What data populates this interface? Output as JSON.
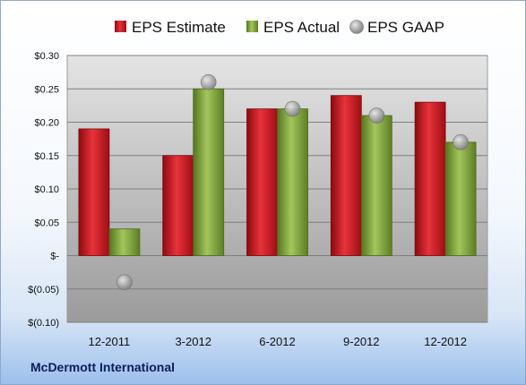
{
  "chart_data": {
    "type": "bar",
    "title": "",
    "xlabel": "",
    "ylabel": "",
    "categories": [
      "12-2011",
      "3-2012",
      "6-2012",
      "9-2012",
      "12-2012"
    ],
    "series": [
      {
        "name": "EPS Estimate",
        "values": [
          0.19,
          0.15,
          0.22,
          0.24,
          0.23
        ],
        "color": "#c8141c",
        "kind": "bar"
      },
      {
        "name": "EPS Actual",
        "values": [
          0.04,
          0.25,
          0.22,
          0.21,
          0.17
        ],
        "color": "#7ea33a",
        "kind": "bar"
      },
      {
        "name": "EPS GAAP",
        "values": [
          -0.04,
          0.26,
          0.22,
          0.21,
          0.17
        ],
        "color": "#9a9a9a",
        "kind": "marker"
      }
    ],
    "ylim": [
      -0.1,
      0.3
    ],
    "y_ticks": [
      -0.1,
      -0.05,
      0,
      0.05,
      0.1,
      0.15,
      0.2,
      0.25,
      0.3
    ],
    "y_tick_labels": [
      "$(0.10)",
      "$(0.05)",
      "$-",
      "$0.05",
      "$0.10",
      "$0.15",
      "$0.20",
      "$0.25",
      "$0.30"
    ],
    "grid": true,
    "legend_position": "top-center"
  },
  "footer": {
    "company": "McDermott International"
  }
}
